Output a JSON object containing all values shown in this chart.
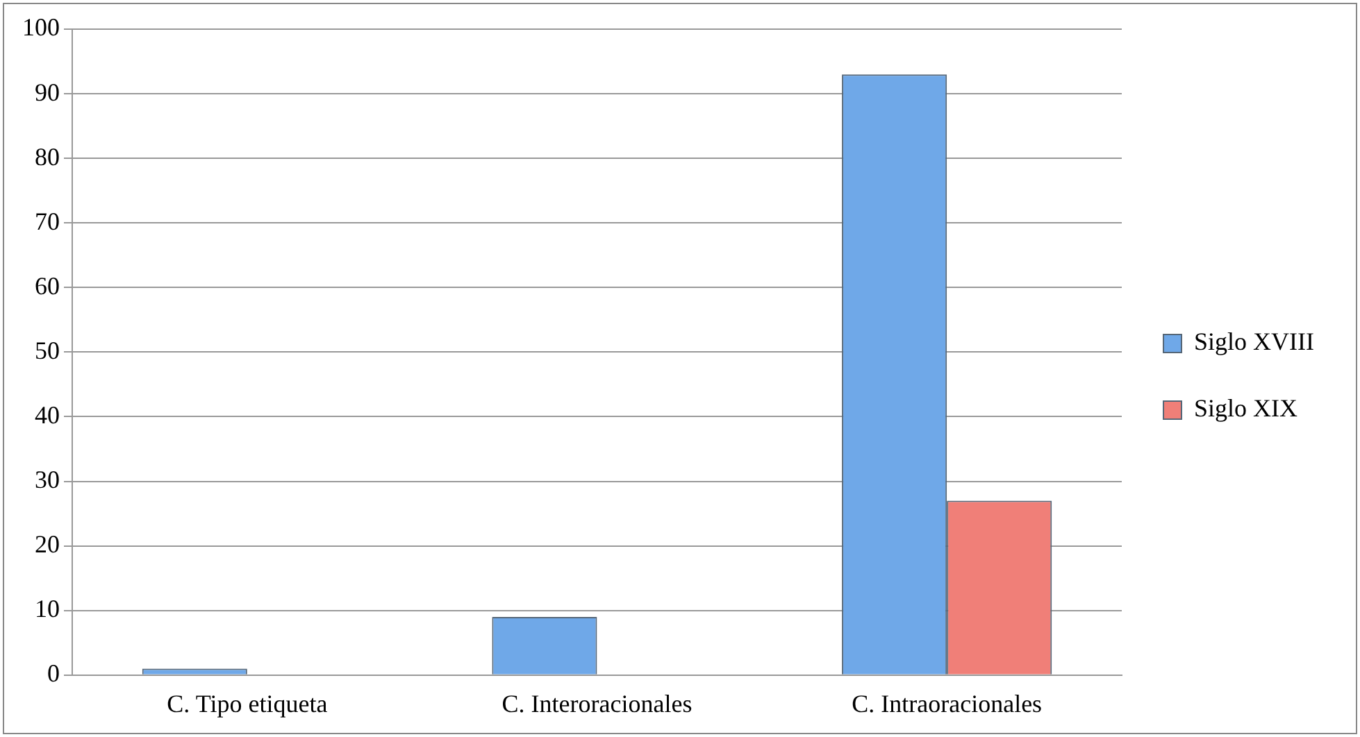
{
  "chart_data": {
    "type": "bar",
    "categories": [
      "C. Tipo etiqueta",
      "C. Interoracionales",
      "C. Intraoracionales"
    ],
    "series": [
      {
        "name": "Siglo XVIII",
        "color": "#6fa8e8",
        "values": [
          1,
          9,
          93
        ]
      },
      {
        "name": "Siglo XIX",
        "color": "#f07f78",
        "values": [
          0,
          0,
          27
        ]
      }
    ],
    "ylim": [
      0,
      100
    ],
    "yticks": [
      0,
      10,
      20,
      30,
      40,
      50,
      60,
      70,
      80,
      90,
      100
    ],
    "grid": "y",
    "legend": "right"
  }
}
